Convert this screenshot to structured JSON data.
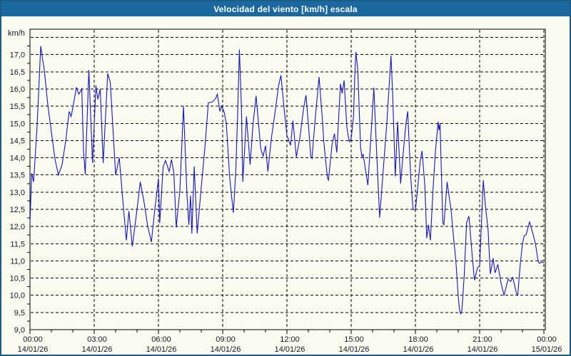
{
  "window": {
    "title": "Velocidad del viento [km/h] escala"
  },
  "colors": {
    "titlebar_bg": "#19699e",
    "titlebar_fg": "#ffffff",
    "frame_border": "#1c5c88",
    "page_bg": "#fbfcf0",
    "plot_bg": "#fbfcf0",
    "plot_border": "#000000",
    "gridline": "#000000",
    "line": "#1414cc",
    "label": "#14142a"
  },
  "chart_data": {
    "type": "line",
    "title": "Velocidad del viento [km/h] escala",
    "ylabel": "km/h",
    "xlabel": "",
    "grid": true,
    "legend_position": "none",
    "y_axis": {
      "min": 9.0,
      "max": 17.74,
      "grid_step": 0.5,
      "decimal_style": "comma",
      "tick_labels": [
        "17,0",
        "16,5",
        "16,0",
        "15,5",
        "15,0",
        "14,5",
        "14,0",
        "13,5",
        "13,0",
        "12,5",
        "12,0",
        "11,5",
        "11,0",
        "10,5",
        "10,0",
        "9,5",
        "9,0"
      ],
      "tick_values": [
        17.0,
        16.5,
        16.0,
        15.5,
        15.0,
        14.5,
        14.0,
        13.5,
        13.0,
        12.5,
        12.0,
        11.5,
        11.0,
        10.5,
        10.0,
        9.5,
        9.0
      ]
    },
    "x_axis": {
      "hours_span": 24,
      "major_step_hours": 3,
      "minor_step_hours": 1,
      "ticks": [
        {
          "time": "00:00",
          "date": "14/01/26"
        },
        {
          "time": "03:00",
          "date": "14/01/26"
        },
        {
          "time": "06:00",
          "date": "14/01/26"
        },
        {
          "time": "09:00",
          "date": "14/01/26"
        },
        {
          "time": "12:00",
          "date": "14/01/26"
        },
        {
          "time": "15:00",
          "date": "14/01/26"
        },
        {
          "time": "18:00",
          "date": "14/01/26"
        },
        {
          "time": "21:00",
          "date": "14/01/26"
        },
        {
          "time": "00:00",
          "date": "15/01/26"
        }
      ]
    },
    "series": [
      {
        "name": "Velocidad del viento",
        "unit": "km/h",
        "color": "#1414cc",
        "points": [
          [
            0,
            12.1
          ],
          [
            0.08,
            13.55
          ],
          [
            0.17,
            13.3
          ],
          [
            0.33,
            14.9
          ],
          [
            0.42,
            16.1
          ],
          [
            0.5,
            17.25
          ],
          [
            0.58,
            16.9
          ],
          [
            0.67,
            16.55
          ],
          [
            0.83,
            15.55
          ],
          [
            1,
            14.75
          ],
          [
            1.17,
            13.95
          ],
          [
            1.33,
            13.5
          ],
          [
            1.5,
            13.8
          ],
          [
            1.67,
            14.5
          ],
          [
            1.83,
            15.35
          ],
          [
            1.92,
            15.2
          ],
          [
            2,
            15.45
          ],
          [
            2.17,
            16.05
          ],
          [
            2.28,
            15.85
          ],
          [
            2.42,
            16
          ],
          [
            2.5,
            14.2
          ],
          [
            2.58,
            13.52
          ],
          [
            2.75,
            16.55
          ],
          [
            2.92,
            13.85
          ],
          [
            3.08,
            16.1
          ],
          [
            3.17,
            15.7
          ],
          [
            3.28,
            16
          ],
          [
            3.42,
            13.85
          ],
          [
            3.63,
            16.45
          ],
          [
            3.75,
            16.2
          ],
          [
            4,
            13.5
          ],
          [
            4.17,
            14
          ],
          [
            4.33,
            12.8
          ],
          [
            4.5,
            11.6
          ],
          [
            4.62,
            12.45
          ],
          [
            4.78,
            11.42
          ],
          [
            5,
            12.5
          ],
          [
            5.15,
            13.3
          ],
          [
            5.33,
            12.7
          ],
          [
            5.5,
            12
          ],
          [
            5.67,
            11.55
          ],
          [
            5.83,
            12.5
          ],
          [
            6,
            13.4
          ],
          [
            6.06,
            12.1
          ],
          [
            6.22,
            13.75
          ],
          [
            6.33,
            13.92
          ],
          [
            6.5,
            13.6
          ],
          [
            6.61,
            13.95
          ],
          [
            6.72,
            13.55
          ],
          [
            6.83,
            11.97
          ],
          [
            7,
            13.05
          ],
          [
            7.17,
            15.5
          ],
          [
            7.33,
            12.95
          ],
          [
            7.42,
            12.05
          ],
          [
            7.5,
            12.9
          ],
          [
            7.56,
            11.8
          ],
          [
            7.67,
            13.75
          ],
          [
            7.81,
            11.8
          ],
          [
            8,
            13.15
          ],
          [
            8.17,
            14.3
          ],
          [
            8.33,
            15.6
          ],
          [
            8.5,
            15.62
          ],
          [
            8.67,
            15.72
          ],
          [
            8.75,
            15.85
          ],
          [
            8.87,
            15.35
          ],
          [
            8.95,
            15.5
          ],
          [
            9.06,
            15.35
          ],
          [
            9.17,
            15
          ],
          [
            9.33,
            13.4
          ],
          [
            9.42,
            12.85
          ],
          [
            9.5,
            12.4
          ],
          [
            9.61,
            13.6
          ],
          [
            9.7,
            15.3
          ],
          [
            9.78,
            17.15
          ],
          [
            9.87,
            15.57
          ],
          [
            9.94,
            13.3
          ],
          [
            10.11,
            15.2
          ],
          [
            10.28,
            13.8
          ],
          [
            10.42,
            15
          ],
          [
            10.56,
            15.8
          ],
          [
            10.78,
            14.25
          ],
          [
            10.89,
            14.05
          ],
          [
            11,
            14.35
          ],
          [
            11.11,
            13.6
          ],
          [
            11.28,
            14.6
          ],
          [
            11.44,
            15.3
          ],
          [
            11.61,
            16.1
          ],
          [
            11.72,
            16.4
          ],
          [
            11.89,
            15.3
          ],
          [
            12,
            14.65
          ],
          [
            12.06,
            14.55
          ],
          [
            12.17,
            14.36
          ],
          [
            12.28,
            15.08
          ],
          [
            12.44,
            14.02
          ],
          [
            12.61,
            14.6
          ],
          [
            12.78,
            15.45
          ],
          [
            12.89,
            15.82
          ],
          [
            13,
            15
          ],
          [
            13.11,
            14.05
          ],
          [
            13.17,
            13.98
          ],
          [
            13.33,
            15.2
          ],
          [
            13.5,
            16.35
          ],
          [
            13.67,
            15
          ],
          [
            13.72,
            14.47
          ],
          [
            13.89,
            13.42
          ],
          [
            13.94,
            13.35
          ],
          [
            14.11,
            14.4
          ],
          [
            14.22,
            14.7
          ],
          [
            14.33,
            14.15
          ],
          [
            14.5,
            16.15
          ],
          [
            14.58,
            15.87
          ],
          [
            14.67,
            16.25
          ],
          [
            14.8,
            14.88
          ],
          [
            14.91,
            14.47
          ],
          [
            15,
            14.55
          ],
          [
            15.11,
            15.2
          ],
          [
            15.17,
            16.4
          ],
          [
            15.22,
            17.08
          ],
          [
            15.31,
            16.55
          ],
          [
            15.44,
            14.3
          ],
          [
            15.5,
            14.03
          ],
          [
            15.56,
            14.1
          ],
          [
            15.78,
            13.2
          ],
          [
            15.92,
            14.6
          ],
          [
            16.06,
            16.04
          ],
          [
            16.17,
            14.43
          ],
          [
            16.33,
            12.26
          ],
          [
            16.56,
            14.15
          ],
          [
            16.67,
            15.05
          ],
          [
            16.86,
            16.97
          ],
          [
            16.94,
            15.82
          ],
          [
            17.06,
            13.46
          ],
          [
            17.17,
            15.05
          ],
          [
            17.31,
            13.25
          ],
          [
            17.44,
            14.2
          ],
          [
            17.56,
            15
          ],
          [
            17.64,
            15.35
          ],
          [
            17.78,
            13.45
          ],
          [
            17.89,
            12.5
          ],
          [
            18,
            12.48
          ],
          [
            18.11,
            13.15
          ],
          [
            18.22,
            13.88
          ],
          [
            18.31,
            14.2
          ],
          [
            18.44,
            13.2
          ],
          [
            18.53,
            11.66
          ],
          [
            18.61,
            12.05
          ],
          [
            18.7,
            11.6
          ],
          [
            18.83,
            13.15
          ],
          [
            18.94,
            14.23
          ],
          [
            19.06,
            15.05
          ],
          [
            19.1,
            14.8
          ],
          [
            19.15,
            15
          ],
          [
            19.28,
            12.11
          ],
          [
            19.33,
            12.04
          ],
          [
            19.48,
            13.3
          ],
          [
            19.67,
            12.46
          ],
          [
            19.78,
            11.69
          ],
          [
            19.89,
            11
          ],
          [
            20,
            9.96
          ],
          [
            20.06,
            9.58
          ],
          [
            20.11,
            9.46
          ],
          [
            20.17,
            9.55
          ],
          [
            20.28,
            10.57
          ],
          [
            20.39,
            12.11
          ],
          [
            20.5,
            12.3
          ],
          [
            20.67,
            11.03
          ],
          [
            20.76,
            10.44
          ],
          [
            20.9,
            10.8
          ],
          [
            21,
            10.86
          ],
          [
            21.17,
            13.35
          ],
          [
            21.28,
            12.53
          ],
          [
            21.39,
            11.95
          ],
          [
            21.5,
            10.62
          ],
          [
            21.63,
            11.08
          ],
          [
            21.72,
            10.65
          ],
          [
            21.85,
            10.9
          ],
          [
            22,
            10.35
          ],
          [
            22.14,
            10
          ],
          [
            22.33,
            10.47
          ],
          [
            22.45,
            10.4
          ],
          [
            22.55,
            10.52
          ],
          [
            22.72,
            10.05
          ],
          [
            22.78,
            10
          ],
          [
            22.89,
            10.86
          ],
          [
            23,
            11.49
          ],
          [
            23.08,
            11.73
          ],
          [
            23.17,
            11.76
          ],
          [
            23.33,
            12.13
          ],
          [
            23.5,
            11.76
          ],
          [
            23.61,
            11.49
          ],
          [
            23.72,
            11.03
          ],
          [
            23.78,
            10.93
          ],
          [
            23.89,
            10.96
          ],
          [
            24,
            10.94
          ]
        ]
      }
    ]
  }
}
